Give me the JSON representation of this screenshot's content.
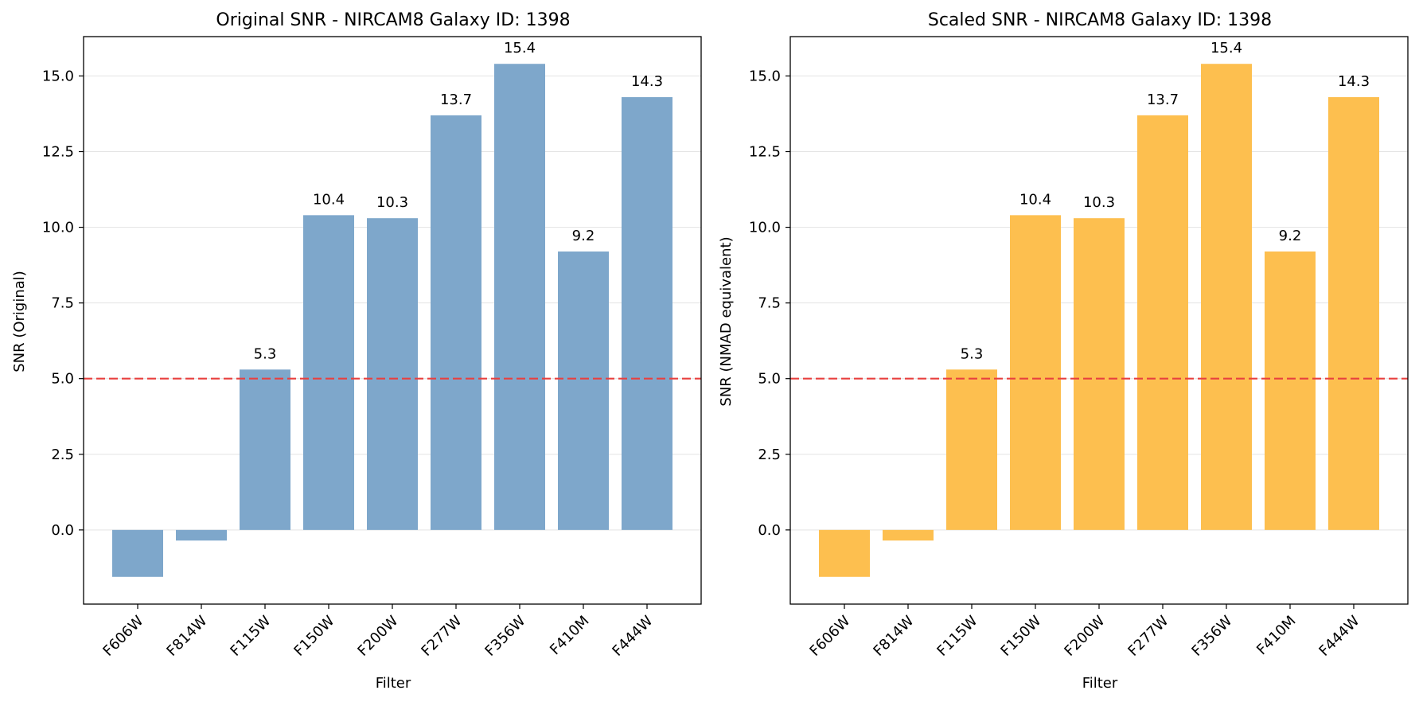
{
  "chart_data": [
    {
      "type": "bar",
      "title": "Original SNR - NIRCAM8 Galaxy ID: 1398",
      "xlabel": "Filter",
      "ylabel": "SNR (Original)",
      "categories": [
        "F606W",
        "F814W",
        "F115W",
        "F150W",
        "F200W",
        "F277W",
        "F356W",
        "F410M",
        "F444W"
      ],
      "values": [
        -1.55,
        -0.35,
        5.3,
        10.4,
        10.3,
        13.7,
        15.4,
        9.2,
        14.3
      ],
      "data_labels": [
        "",
        "",
        "5.3",
        "10.4",
        "10.3",
        "13.7",
        "15.4",
        "9.2",
        "14.3"
      ],
      "ylim": [
        -2.45,
        16.3
      ],
      "yticks": [
        "0.0",
        "2.5",
        "5.0",
        "7.5",
        "10.0",
        "12.5",
        "15.0"
      ],
      "ytick_values": [
        0,
        2.5,
        5,
        7.5,
        10,
        12.5,
        15
      ],
      "threshold": 5.0,
      "grid": "horizontal",
      "color": "#7ea7cb",
      "threshold_color": "#e8403f"
    },
    {
      "type": "bar",
      "title": "Scaled SNR - NIRCAM8 Galaxy ID: 1398",
      "xlabel": "Filter",
      "ylabel": "SNR (NMAD equivalent)",
      "categories": [
        "F606W",
        "F814W",
        "F115W",
        "F150W",
        "F200W",
        "F277W",
        "F356W",
        "F410M",
        "F444W"
      ],
      "values": [
        -1.55,
        -0.35,
        5.3,
        10.4,
        10.3,
        13.7,
        15.4,
        9.2,
        14.3
      ],
      "data_labels": [
        "",
        "",
        "5.3",
        "10.4",
        "10.3",
        "13.7",
        "15.4",
        "9.2",
        "14.3"
      ],
      "ylim": [
        -2.45,
        16.3
      ],
      "yticks": [
        "0.0",
        "2.5",
        "5.0",
        "7.5",
        "10.0",
        "12.5",
        "15.0"
      ],
      "ytick_values": [
        0,
        2.5,
        5,
        7.5,
        10,
        12.5,
        15
      ],
      "threshold": 5.0,
      "grid": "horizontal",
      "color": "#fdbf4f",
      "threshold_color": "#e8403f"
    }
  ]
}
